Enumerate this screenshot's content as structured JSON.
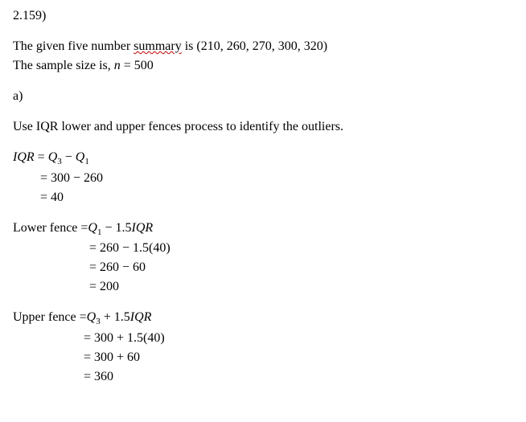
{
  "problem_number": "2.159)",
  "intro": {
    "line1_prefix": "The given five number ",
    "line1_wavy": "summary",
    "line1_suffix": " is ",
    "five_number_summary": "(210, 260, 270, 300, 320)",
    "line2_prefix": "The sample size is,  ",
    "n_var": "n",
    "n_eq": " = 500"
  },
  "part_a": {
    "label": "a)",
    "instruction": "Use IQR lower and upper fences process to identify the outliers."
  },
  "iqr": {
    "lhs_var": "IQR",
    "eq": " = ",
    "q3": "Q",
    "q3_sub": "3",
    "minus": " − ",
    "q1": "Q",
    "q1_sub": "1",
    "step1": "= 300 − 260",
    "step2": "= 40"
  },
  "lower_fence": {
    "label": "Lower fence = ",
    "q1": "Q",
    "q1_sub": "1",
    "rhs": " − 1.5",
    "iqr_var": "IQR",
    "step1": "= 260 − 1.5(40)",
    "step2": "= 260 − 60",
    "step3": "= 200"
  },
  "upper_fence": {
    "label": "Upper fence = ",
    "q3": "Q",
    "q3_sub": "3",
    "rhs": " + 1.5",
    "iqr_var": "IQR",
    "step1": "= 300 + 1.5(40)",
    "step2": "= 300 + 60",
    "step3": "= 360"
  },
  "style": {
    "font_family": "Times New Roman",
    "font_size_pt": 12,
    "text_color": "#000000",
    "background_color": "#ffffff",
    "wavy_underline_color": "#c00000"
  }
}
